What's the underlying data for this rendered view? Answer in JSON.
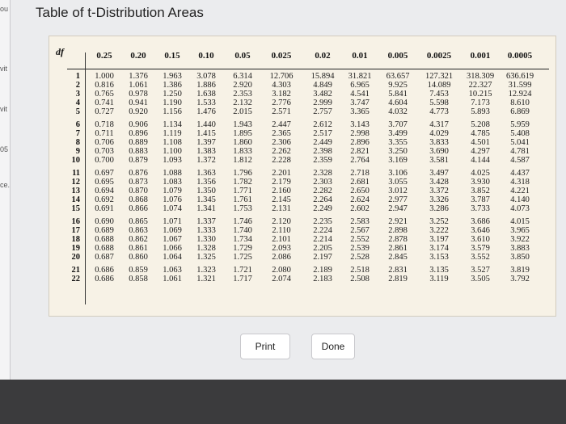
{
  "window": {
    "title": "Table of t-Distribution Areas"
  },
  "left_strip": [
    "ou",
    "vit",
    "vit",
    "05",
    "ce."
  ],
  "table": {
    "df_label": "df",
    "columns": [
      "0.25",
      "0.20",
      "0.15",
      "0.10",
      "0.05",
      "0.025",
      "0.02",
      "0.01",
      "0.005",
      "0.0025",
      "0.001",
      "0.0005"
    ],
    "rows": [
      {
        "df": "1",
        "v": [
          "1.000",
          "1.376",
          "1.963",
          "3.078",
          "6.314",
          "12.706",
          "15.894",
          "31.821",
          "63.657",
          "127.321",
          "318.309",
          "636.619"
        ]
      },
      {
        "df": "2",
        "v": [
          "0.816",
          "1.061",
          "1.386",
          "1.886",
          "2.920",
          "4.303",
          "4.849",
          "6.965",
          "9.925",
          "14.089",
          "22.327",
          "31.599"
        ]
      },
      {
        "df": "3",
        "v": [
          "0.765",
          "0.978",
          "1.250",
          "1.638",
          "2.353",
          "3.182",
          "3.482",
          "4.541",
          "5.841",
          "7.453",
          "10.215",
          "12.924"
        ]
      },
      {
        "df": "4",
        "v": [
          "0.741",
          "0.941",
          "1.190",
          "1.533",
          "2.132",
          "2.776",
          "2.999",
          "3.747",
          "4.604",
          "5.598",
          "7.173",
          "8.610"
        ]
      },
      {
        "df": "5",
        "v": [
          "0.727",
          "0.920",
          "1.156",
          "1.476",
          "2.015",
          "2.571",
          "2.757",
          "3.365",
          "4.032",
          "4.773",
          "5.893",
          "6.869"
        ]
      },
      {
        "df": "6",
        "v": [
          "0.718",
          "0.906",
          "1.134",
          "1.440",
          "1.943",
          "2.447",
          "2.612",
          "3.143",
          "3.707",
          "4.317",
          "5.208",
          "5.959"
        ]
      },
      {
        "df": "7",
        "v": [
          "0.711",
          "0.896",
          "1.119",
          "1.415",
          "1.895",
          "2.365",
          "2.517",
          "2.998",
          "3.499",
          "4.029",
          "4.785",
          "5.408"
        ]
      },
      {
        "df": "8",
        "v": [
          "0.706",
          "0.889",
          "1.108",
          "1.397",
          "1.860",
          "2.306",
          "2.449",
          "2.896",
          "3.355",
          "3.833",
          "4.501",
          "5.041"
        ]
      },
      {
        "df": "9",
        "v": [
          "0.703",
          "0.883",
          "1.100",
          "1.383",
          "1.833",
          "2.262",
          "2.398",
          "2.821",
          "3.250",
          "3.690",
          "4.297",
          "4.781"
        ]
      },
      {
        "df": "10",
        "v": [
          "0.700",
          "0.879",
          "1.093",
          "1.372",
          "1.812",
          "2.228",
          "2.359",
          "2.764",
          "3.169",
          "3.581",
          "4.144",
          "4.587"
        ]
      },
      {
        "df": "11",
        "v": [
          "0.697",
          "0.876",
          "1.088",
          "1.363",
          "1.796",
          "2.201",
          "2.328",
          "2.718",
          "3.106",
          "3.497",
          "4.025",
          "4.437"
        ]
      },
      {
        "df": "12",
        "v": [
          "0.695",
          "0.873",
          "1.083",
          "1.356",
          "1.782",
          "2.179",
          "2.303",
          "2.681",
          "3.055",
          "3.428",
          "3.930",
          "4.318"
        ]
      },
      {
        "df": "13",
        "v": [
          "0.694",
          "0.870",
          "1.079",
          "1.350",
          "1.771",
          "2.160",
          "2.282",
          "2.650",
          "3.012",
          "3.372",
          "3.852",
          "4.221"
        ]
      },
      {
        "df": "14",
        "v": [
          "0.692",
          "0.868",
          "1.076",
          "1.345",
          "1.761",
          "2.145",
          "2.264",
          "2.624",
          "2.977",
          "3.326",
          "3.787",
          "4.140"
        ]
      },
      {
        "df": "15",
        "v": [
          "0.691",
          "0.866",
          "1.074",
          "1.341",
          "1.753",
          "2.131",
          "2.249",
          "2.602",
          "2.947",
          "3.286",
          "3.733",
          "4.073"
        ]
      },
      {
        "df": "16",
        "v": [
          "0.690",
          "0.865",
          "1.071",
          "1.337",
          "1.746",
          "2.120",
          "2.235",
          "2.583",
          "2.921",
          "3.252",
          "3.686",
          "4.015"
        ]
      },
      {
        "df": "17",
        "v": [
          "0.689",
          "0.863",
          "1.069",
          "1.333",
          "1.740",
          "2.110",
          "2.224",
          "2.567",
          "2.898",
          "3.222",
          "3.646",
          "3.965"
        ]
      },
      {
        "df": "18",
        "v": [
          "0.688",
          "0.862",
          "1.067",
          "1.330",
          "1.734",
          "2.101",
          "2.214",
          "2.552",
          "2.878",
          "3.197",
          "3.610",
          "3.922"
        ]
      },
      {
        "df": "19",
        "v": [
          "0.688",
          "0.861",
          "1.066",
          "1.328",
          "1.729",
          "2.093",
          "2.205",
          "2.539",
          "2.861",
          "3.174",
          "3.579",
          "3.883"
        ]
      },
      {
        "df": "20",
        "v": [
          "0.687",
          "0.860",
          "1.064",
          "1.325",
          "1.725",
          "2.086",
          "2.197",
          "2.528",
          "2.845",
          "3.153",
          "3.552",
          "3.850"
        ]
      },
      {
        "df": "21",
        "v": [
          "0.686",
          "0.859",
          "1.063",
          "1.323",
          "1.721",
          "2.080",
          "2.189",
          "2.518",
          "2.831",
          "3.135",
          "3.527",
          "3.819"
        ]
      },
      {
        "df": "22",
        "v": [
          "0.686",
          "0.858",
          "1.061",
          "1.321",
          "1.717",
          "2.074",
          "2.183",
          "2.508",
          "2.819",
          "3.119",
          "3.505",
          "3.792"
        ]
      }
    ]
  },
  "buttons": {
    "print": "Print",
    "done": "Done"
  }
}
